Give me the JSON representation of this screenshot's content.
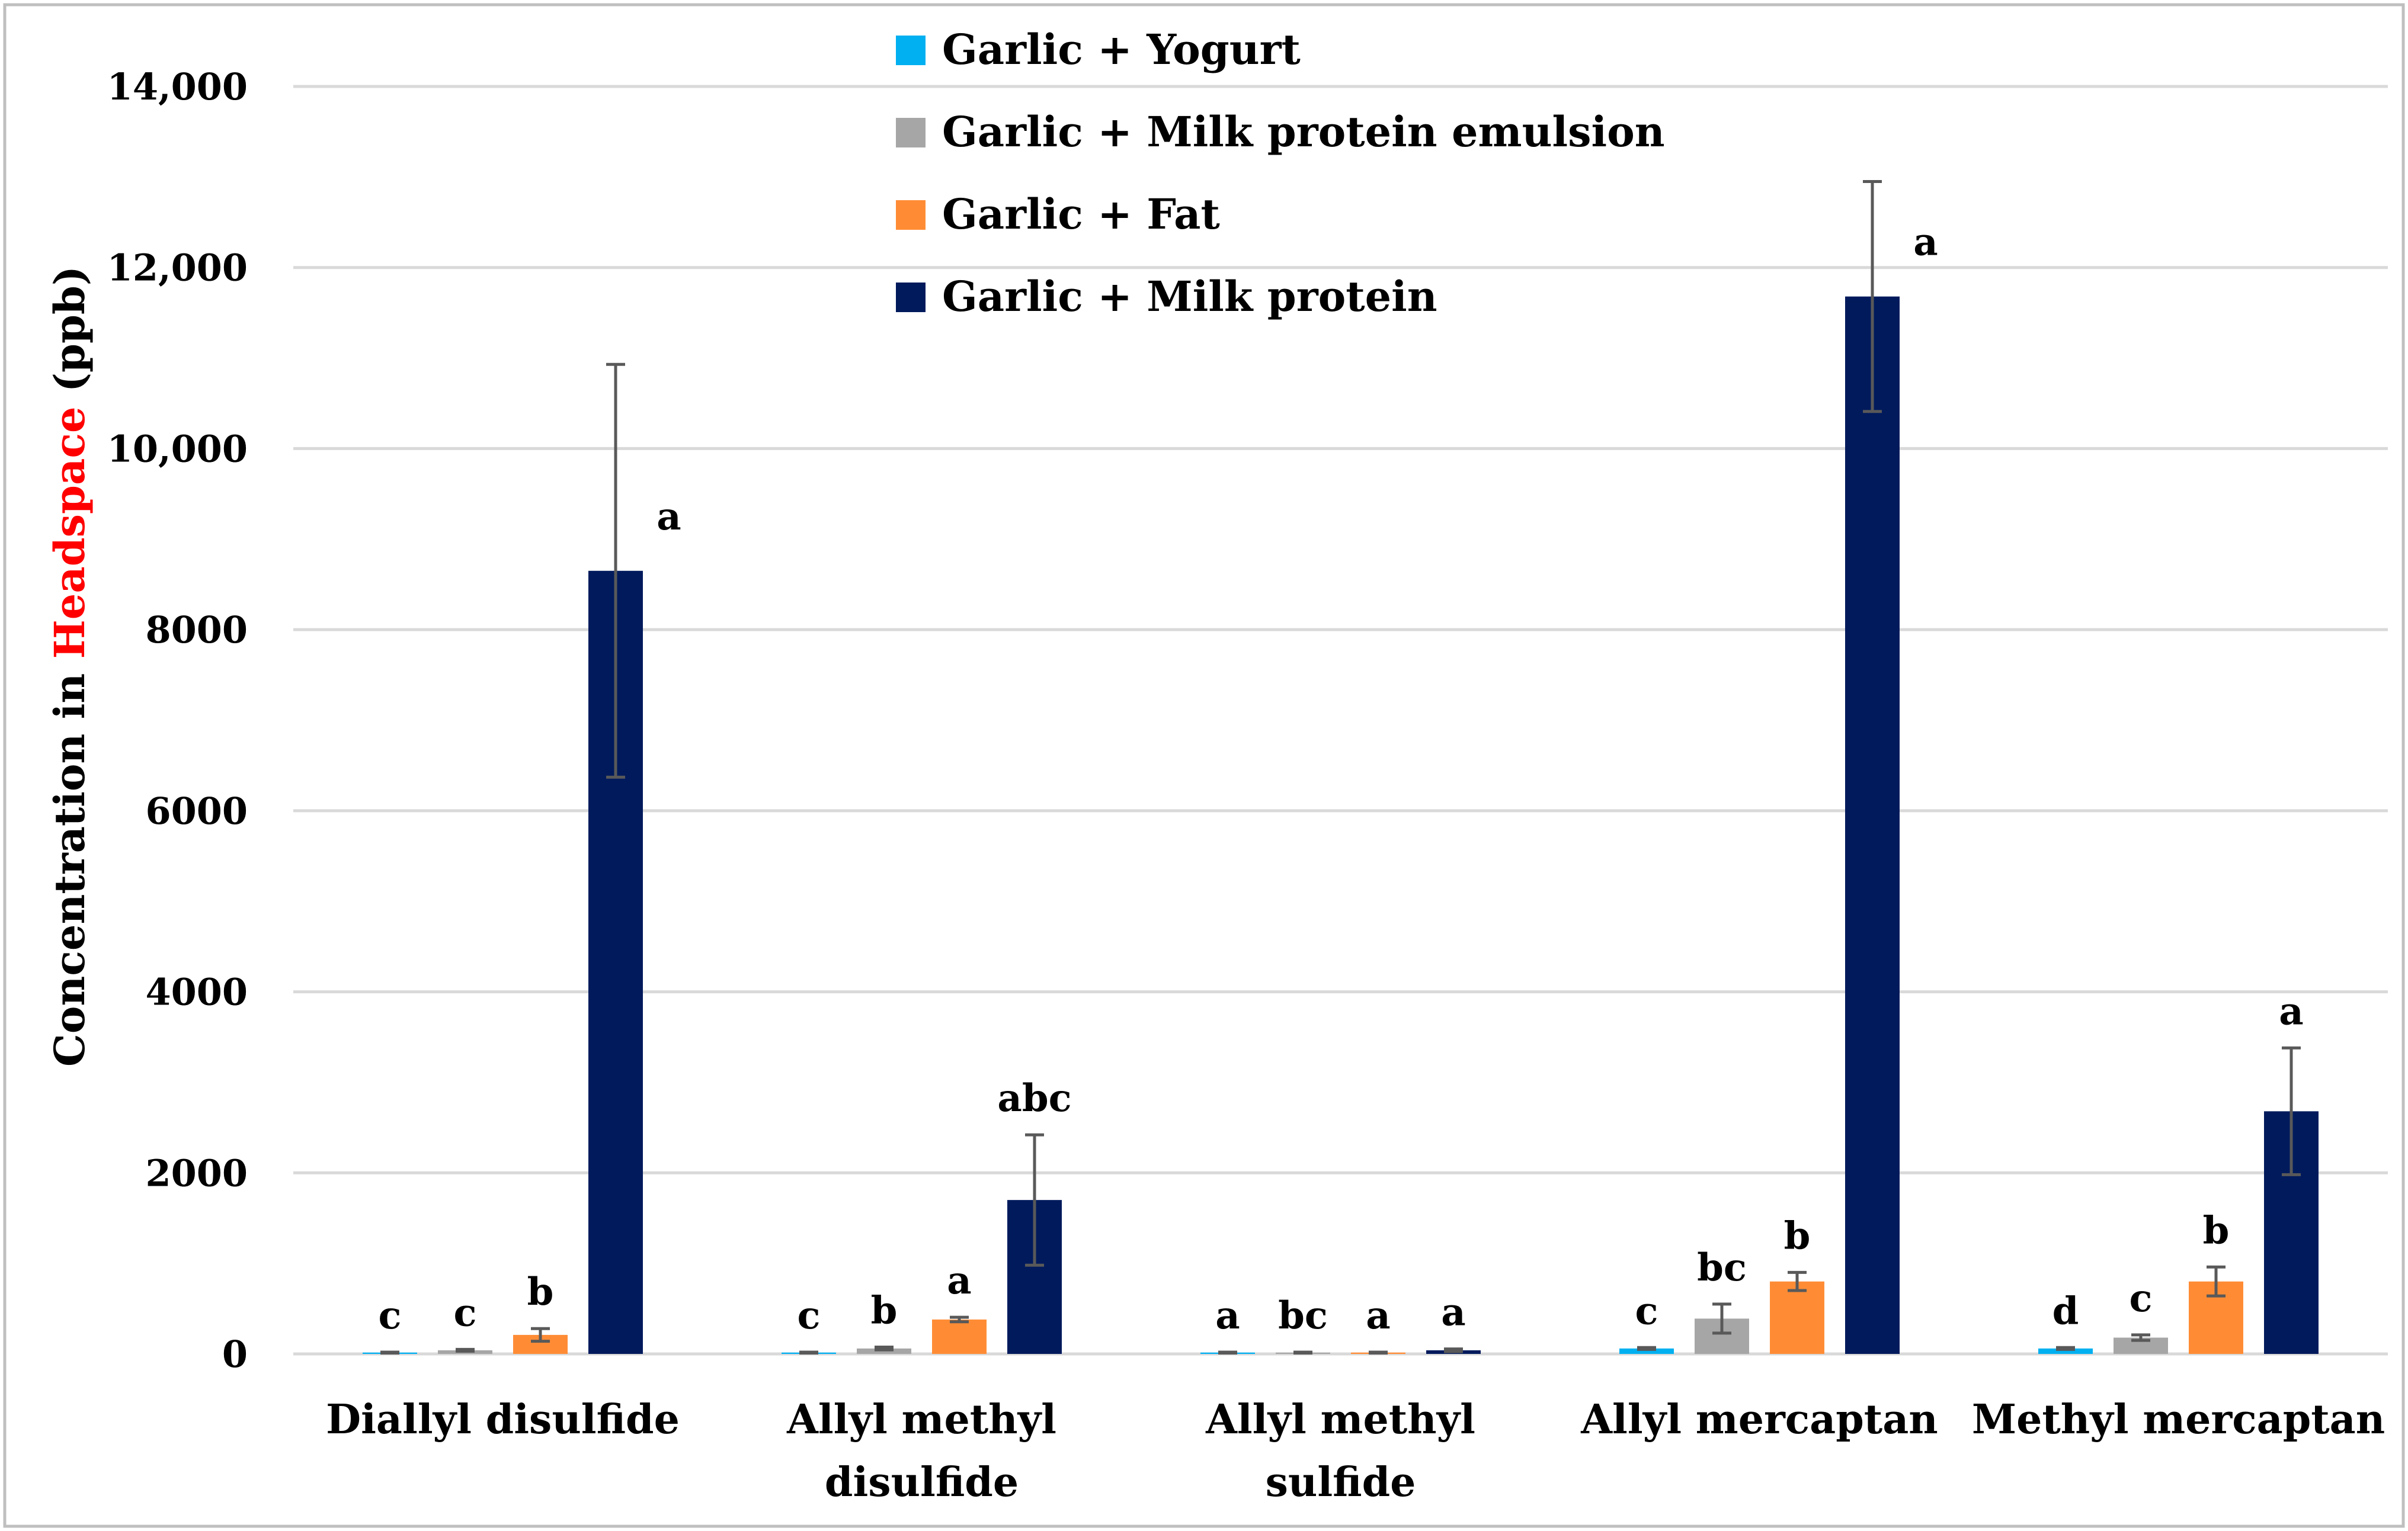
{
  "chart_data": {
    "type": "bar",
    "ylabel_parts": [
      {
        "text": "Concentration in ",
        "color": "#000000"
      },
      {
        "text": "Headspace",
        "color": "#ff0000"
      },
      {
        "text": " (ppb)",
        "color": "#000000"
      }
    ],
    "ylim": [
      0,
      14000
    ],
    "yticks": [
      {
        "value": 0,
        "label": "0"
      },
      {
        "value": 2000,
        "label": "2000"
      },
      {
        "value": 4000,
        "label": "4000"
      },
      {
        "value": 6000,
        "label": "6000"
      },
      {
        "value": 8000,
        "label": "8000"
      },
      {
        "value": 10000,
        "label": "10,000"
      },
      {
        "value": 12000,
        "label": "12,000"
      },
      {
        "value": 14000,
        "label": "14,000"
      }
    ],
    "grid": true,
    "legend_position": "top-center",
    "categories": [
      [
        "Diallyl disulfide"
      ],
      [
        "Allyl methyl",
        "disulfide"
      ],
      [
        "Allyl methyl",
        "sulfide"
      ],
      [
        "Allyl mercaptan"
      ],
      [
        "Methyl mercaptan"
      ]
    ],
    "series": [
      {
        "name": "Garlic + Yogurt",
        "color": "#00b0f0",
        "values": [
          15,
          15,
          15,
          60,
          60
        ],
        "errors": [
          5,
          5,
          5,
          10,
          10
        ],
        "labels": [
          "c",
          "c",
          "a",
          "c",
          "d"
        ]
      },
      {
        "name": "Garlic + Milk protein emulsion",
        "color": "#a6a6a6",
        "values": [
          40,
          60,
          15,
          390,
          180
        ],
        "errors": [
          10,
          15,
          5,
          160,
          30
        ],
        "labels": [
          "c",
          "b",
          "bc",
          "bc",
          "c"
        ]
      },
      {
        "name": "Garlic + Fat",
        "color": "#ff8c35",
        "values": [
          210,
          380,
          15,
          800,
          800
        ],
        "errors": [
          70,
          25,
          5,
          100,
          160
        ],
        "labels": [
          "b",
          "a",
          "a",
          "b",
          "b"
        ]
      },
      {
        "name": "Garlic + Milk protein",
        "color": "#001a5c",
        "values": [
          8650,
          1700,
          40,
          11680,
          2680
        ],
        "errors": [
          2280,
          720,
          15,
          1270,
          700
        ],
        "labels": [
          "a",
          "abc",
          "a",
          "a",
          "a"
        ]
      }
    ]
  }
}
